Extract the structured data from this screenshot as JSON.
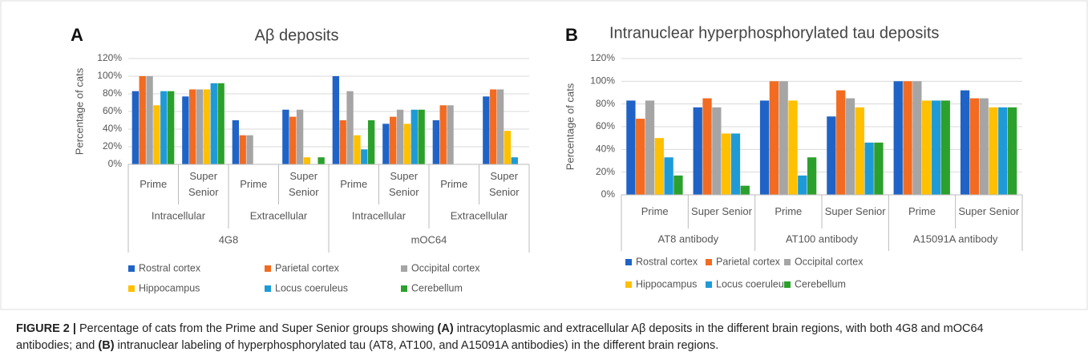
{
  "chart_data": [
    {
      "type": "bar",
      "panel": "A",
      "title": "Aβ deposits",
      "ylabel": "Percentage of cats",
      "categories": [
        "Prime",
        "Super Senior",
        "Prime",
        "Super Senior",
        "Prime",
        "Super Senior",
        "Prime",
        "Super Senior"
      ],
      "group_levels": [
        [
          {
            "label": "Intracellular",
            "count": 2
          },
          {
            "label": "Extracellular",
            "count": 2
          },
          {
            "label": "Intracellular",
            "count": 2
          },
          {
            "label": "Extracellular",
            "count": 2
          }
        ],
        [
          {
            "label": "4G8",
            "count": 4
          },
          {
            "label": "mOC64",
            "count": 4
          }
        ]
      ],
      "ylim": [
        0,
        120
      ],
      "yticks": [
        {
          "value": 0,
          "label": "0%"
        },
        {
          "value": 20,
          "label": "20%"
        },
        {
          "value": 40,
          "label": "40%"
        },
        {
          "value": 60,
          "label": "60%"
        },
        {
          "value": 80,
          "label": "80%"
        },
        {
          "value": 100,
          "label": "100%"
        },
        {
          "value": 120,
          "label": "120%"
        }
      ],
      "grid": true,
      "series": [
        {
          "name": "Rostral cortex",
          "color": "#1f63c6",
          "values": [
            83,
            77,
            50,
            62,
            100,
            46,
            50,
            77
          ]
        },
        {
          "name": "Parietal cortex",
          "color": "#f26b21",
          "values": [
            100,
            85,
            33,
            54,
            50,
            54,
            67,
            85
          ]
        },
        {
          "name": "Occipital cortex",
          "color": "#a5a5a5",
          "values": [
            100,
            85,
            33,
            62,
            83,
            62,
            67,
            85
          ]
        },
        {
          "name": "Hippocampus",
          "color": "#ffc000",
          "values": [
            67,
            85,
            0,
            8,
            33,
            46,
            0,
            38
          ]
        },
        {
          "name": "Locus coeruleus",
          "color": "#1e9bd7",
          "values": [
            83,
            92,
            0,
            0,
            17,
            62,
            0,
            8
          ]
        },
        {
          "name": "Cerebellum",
          "color": "#2ca02c",
          "values": [
            83,
            92,
            0,
            8,
            50,
            62,
            0,
            0
          ]
        }
      ]
    },
    {
      "type": "bar",
      "panel": "B",
      "title": "Intranuclear hyperphosphorylated tau deposits",
      "ylabel": "Percentage of cats",
      "categories": [
        "Prime",
        "Super Senior",
        "Prime",
        "Super Senior",
        "Prime",
        "Super Senior"
      ],
      "group_levels": [
        [
          {
            "label": "AT8 antibody",
            "count": 2
          },
          {
            "label": "AT100 antibody",
            "count": 2
          },
          {
            "label": "A15091A antibody",
            "count": 2
          }
        ]
      ],
      "ylim": [
        0,
        120
      ],
      "yticks": [
        {
          "value": 0,
          "label": "0%"
        },
        {
          "value": 20,
          "label": "20%"
        },
        {
          "value": 40,
          "label": "40%"
        },
        {
          "value": 60,
          "label": "60%"
        },
        {
          "value": 80,
          "label": "80%"
        },
        {
          "value": 100,
          "label": "100%"
        },
        {
          "value": 120,
          "label": "120%"
        }
      ],
      "grid": true,
      "series": [
        {
          "name": "Rostral cortex",
          "color": "#1f63c6",
          "values": [
            83,
            77,
            83,
            69,
            100,
            92
          ]
        },
        {
          "name": "Parietal cortex",
          "color": "#f26b21",
          "values": [
            67,
            85,
            100,
            92,
            100,
            85
          ]
        },
        {
          "name": "Occipital cortex",
          "color": "#a5a5a5",
          "values": [
            83,
            77,
            100,
            85,
            100,
            85
          ]
        },
        {
          "name": "Hippocampus",
          "color": "#ffc000",
          "values": [
            50,
            54,
            83,
            77,
            83,
            77
          ]
        },
        {
          "name": "Locus coeruleus",
          "color": "#1e9bd7",
          "values": [
            33,
            54,
            17,
            46,
            83,
            77
          ]
        },
        {
          "name": "Cerebellum",
          "color": "#2ca02c",
          "values": [
            17,
            8,
            33,
            46,
            83,
            77
          ]
        }
      ]
    }
  ],
  "caption": [
    {
      "text": "FIGURE 2 |",
      "bold": true
    },
    {
      "text": " Percentage of cats from the Prime and Super Senior groups showing ",
      "bold": false
    },
    {
      "text": "(A)",
      "bold": true
    },
    {
      "text": " intracytoplasmic and extracellular Aβ deposits in the different brain regions, with both 4G8 and mOC64 antibodies; and ",
      "bold": false
    },
    {
      "text": "(B)",
      "bold": true
    },
    {
      "text": " intranuclear labeling of hyperphosphorylated tau (AT8, AT100, and A15091A antibodies) in the different brain regions.",
      "bold": false
    }
  ]
}
